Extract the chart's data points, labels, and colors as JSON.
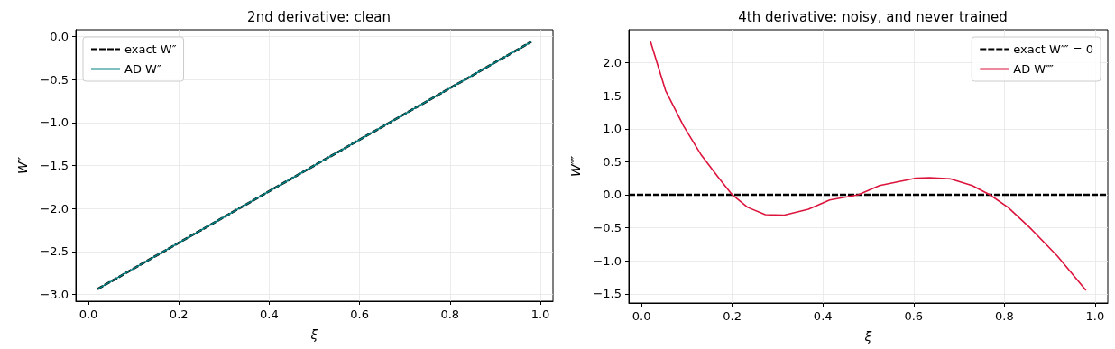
{
  "chart_data": [
    {
      "type": "line",
      "title": "2nd derivative: clean",
      "xlabel": "ξ",
      "ylabel": "W″",
      "xlim": [
        -0.028,
        1.028
      ],
      "ylim": [
        -3.08,
        0.08
      ],
      "xticks": [
        {
          "value": 0,
          "label": "0.0"
        },
        {
          "value": 0.2,
          "label": "0.2"
        },
        {
          "value": 0.4,
          "label": "0.4"
        },
        {
          "value": 0.6,
          "label": "0.6"
        },
        {
          "value": 0.8,
          "label": "0.8"
        },
        {
          "value": 1,
          "label": "1.0"
        }
      ],
      "yticks": [
        {
          "value": -3,
          "label": "−3.0"
        },
        {
          "value": -2.5,
          "label": "−2.5"
        },
        {
          "value": -2,
          "label": "−2.0"
        },
        {
          "value": -1.5,
          "label": "−1.5"
        },
        {
          "value": -1,
          "label": "−1.0"
        },
        {
          "value": -0.5,
          "label": "−0.5"
        },
        {
          "value": 0,
          "label": "0.0"
        }
      ],
      "grid": true,
      "legend": "top left",
      "marker": "none",
      "series": [
        {
          "name": "exact W″",
          "color": "#000000",
          "line_style": "dashed",
          "x": [
            0.02,
            0.5,
            0.98
          ],
          "values": [
            -2.94,
            -1.5,
            -0.06
          ]
        },
        {
          "name": "AD W″",
          "color": "#008080",
          "line_style": "solid",
          "x": [
            0.02,
            0.5,
            0.98
          ],
          "values": [
            -2.94,
            -1.5,
            -0.06
          ]
        }
      ]
    },
    {
      "type": "line",
      "title": "4th derivative: noisy, and never trained",
      "xlabel": "ξ",
      "ylabel": "W⁗",
      "xlim": [
        -0.028,
        1.028
      ],
      "ylim": [
        -1.64,
        2.5
      ],
      "xticks": [
        {
          "value": 0,
          "label": "0.0"
        },
        {
          "value": 0.2,
          "label": "0.2"
        },
        {
          "value": 0.4,
          "label": "0.4"
        },
        {
          "value": 0.6,
          "label": "0.6"
        },
        {
          "value": 0.8,
          "label": "0.8"
        },
        {
          "value": 1,
          "label": "1.0"
        }
      ],
      "yticks": [
        {
          "value": -1.5,
          "label": "−1.5"
        },
        {
          "value": -1,
          "label": "−1.0"
        },
        {
          "value": -0.5,
          "label": "−0.5"
        },
        {
          "value": 0,
          "label": "0.0"
        },
        {
          "value": 0.5,
          "label": "0.5"
        },
        {
          "value": 1,
          "label": "1.0"
        },
        {
          "value": 1.5,
          "label": "1.5"
        },
        {
          "value": 2,
          "label": "2.0"
        }
      ],
      "grid": true,
      "legend": "top right",
      "marker": "none",
      "series": [
        {
          "name": "exact W⁗ = 0",
          "color": "#000000",
          "line_style": "dashed",
          "x": [
            -0.028,
            1.028
          ],
          "values": [
            0,
            0
          ]
        },
        {
          "name": "AD W⁗",
          "color": "#dc143c",
          "line_style": "solid",
          "x": [
            0.02,
            0.053,
            0.093,
            0.132,
            0.171,
            0.2,
            0.234,
            0.273,
            0.313,
            0.368,
            0.415,
            0.478,
            0.525,
            0.603,
            0.635,
            0.682,
            0.729,
            0.768,
            0.808,
            0.855,
            0.917,
            0.98
          ],
          "values": [
            2.32,
            1.58,
            1.04,
            0.6,
            0.25,
            0,
            -0.19,
            -0.3,
            -0.31,
            -0.22,
            -0.08,
            0,
            0.14,
            0.25,
            0.26,
            0.24,
            0.14,
            0,
            -0.19,
            -0.49,
            -0.93,
            -1.45
          ]
        }
      ]
    }
  ]
}
